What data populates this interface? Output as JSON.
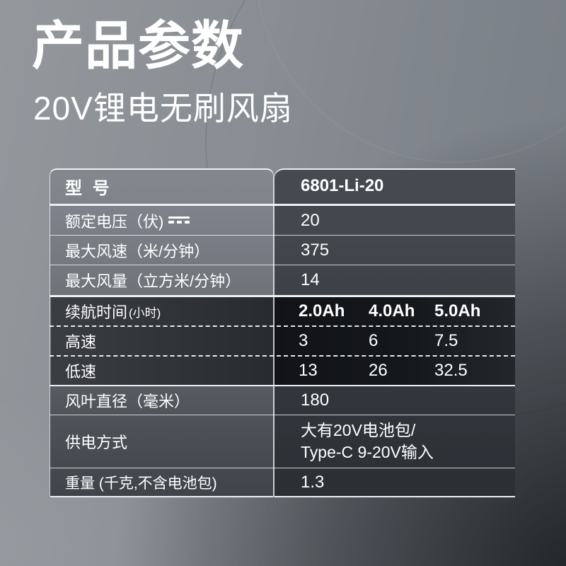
{
  "header": {
    "title": "产品参数",
    "subtitle": "20V锂电无刷风扇"
  },
  "table": {
    "model": {
      "label": "型 号",
      "value": "6801-Li-20"
    },
    "rows": [
      {
        "label": "额定电压（伏)",
        "icon": "dc-voltage-icon",
        "value": "20"
      },
      {
        "label": "最大风速（米/分钟）",
        "value": "375"
      },
      {
        "label": "最大风量（立方米/分钟）",
        "value": "14"
      },
      {
        "label": "续航时间",
        "unit": "(小时)",
        "values": [
          "2.0Ah",
          "4.0Ah",
          "5.0Ah"
        ]
      },
      {
        "label": "高速",
        "values": [
          "3",
          "6",
          "7.5"
        ]
      },
      {
        "label": "低速",
        "values": [
          "13",
          "26",
          "32.5"
        ]
      },
      {
        "label": "风叶直径（毫米）",
        "value": "180"
      },
      {
        "label": "供电方式",
        "value_lines": [
          "大有20V电池包/",
          "Type-C 9-20V输入"
        ]
      },
      {
        "label": "重量 (千克,不含电池包)",
        "value": "1.3"
      }
    ]
  },
  "colors": {
    "text": "#ffffff",
    "line": "#eef0f2",
    "band_right_dark": "#111316",
    "band_left_dark": "#33363b",
    "page_light": "#94989d",
    "page_dark": "#2d3136"
  }
}
